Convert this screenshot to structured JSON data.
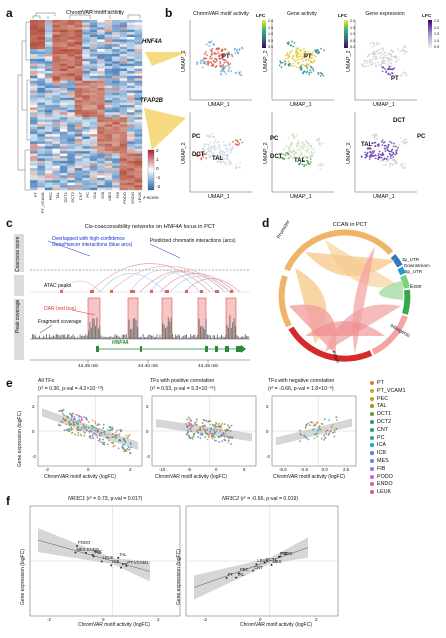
{
  "panel_labels": {
    "a": "a",
    "b": "b",
    "c": "c",
    "d": "d",
    "e": "e",
    "f": "f"
  },
  "panel_a": {
    "title": "ChromVAR motif activity",
    "motif1": "HNF4A",
    "motif2": "TFAP2B",
    "zscore_label": "z-score",
    "zscore_ticks": [
      "2",
      "1",
      "0",
      "-1",
      "-2"
    ],
    "col_labels": [
      "PT",
      "PT_VCAM1",
      "PEC",
      "TAL",
      "DCT1",
      "DCT2",
      "CNT",
      "PC",
      "ICA",
      "ICB",
      "MES",
      "FIB",
      "PODO",
      "ENDO",
      "LEUK"
    ]
  },
  "panel_b": {
    "col_titles": [
      "ChromVAR motif activity",
      "Gene activity",
      "Gene expression"
    ],
    "umap_x": "UMAP_1",
    "umap_y": "UMAP_2",
    "lfc": "LFC",
    "lfc_ticks": [
      "2.0",
      "1.5",
      "1.0",
      "0.5",
      "0.0"
    ],
    "lfc3_ticks": [
      "2.5",
      "2.0",
      "1.5",
      "1.0",
      "0.5"
    ],
    "labels_top": [
      "PT",
      "PT",
      "PT"
    ],
    "labels_bottom": [
      "PC",
      "DCT",
      "TAL",
      "PC",
      "DCT",
      "TAL",
      "DCT",
      "TAL",
      "PC"
    ]
  },
  "panel_c": {
    "title_pre": "Cis-coaccessibility networks on ",
    "title_gene": "HNF4A",
    "title_post": " locus in PCT",
    "ann_overlap": "Overlapped with high-confidence",
    "ann_genehancer": "GeneHancer interactions (blue arcs)",
    "ann_predicted": "Predicted chromatin interactions (arcs)",
    "ann_atac": "ATAC peaks",
    "ann_dar": "DAR (red box)",
    "ann_fragment": "Fragment coverage",
    "ylab_coaccess": "Coaccess score",
    "ylab_peak": "Peak coverage",
    "gene": "HNF4A",
    "positions": [
      "44.35 mb",
      "44.40 mb",
      "44.45 mb"
    ]
  },
  "panel_d": {
    "title": "CCAN in PCT",
    "sectors": [
      "Promoter",
      "3p_UTR",
      "Downstream",
      "5p_UTR",
      "Exon",
      "Intergenic",
      "Intron"
    ]
  },
  "panel_e": {
    "titles": [
      "All TFs",
      "TFs with positive correlation",
      "TFs with negative correlation"
    ],
    "stats": [
      "(r² = 0.36, p-val = 4.2×10⁻¹³)",
      "(r² = 0.53, p-val = 5.3×10⁻²⁵)",
      "(r² = -0.66, p-val = 1.8×10⁻⁸)"
    ],
    "ylabel": "Gene expression (logFC)",
    "xlabel": "ChromVAR motif activity (logFC)",
    "xticks1": [
      "-2",
      "0",
      "2"
    ],
    "xticks2": [
      "-10",
      "-5",
      "0",
      "5"
    ],
    "xticks3": [
      "-5.0",
      "-2.5",
      "0.0",
      "2.5"
    ],
    "yticks": [
      "2",
      "0",
      "-2"
    ]
  },
  "legend": {
    "items": [
      {
        "label": "PT",
        "color": "#e07a28"
      },
      {
        "label": "PT_VCAM1",
        "color": "#d4a017"
      },
      {
        "label": "PEC",
        "color": "#b8a22a"
      },
      {
        "label": "TAL",
        "color": "#8f9a1c"
      },
      {
        "label": "DCT1",
        "color": "#5e9c2e"
      },
      {
        "label": "DCT2",
        "color": "#2e9e4a"
      },
      {
        "label": "CNT",
        "color": "#1fa37a"
      },
      {
        "label": "PC",
        "color": "#1aa5a0"
      },
      {
        "label": "ICA",
        "color": "#1a9fc4"
      },
      {
        "label": "ICB",
        "color": "#2f8fd8"
      },
      {
        "label": "MES",
        "color": "#6f7fe0"
      },
      {
        "label": "FIB",
        "color": "#9a6fe0"
      },
      {
        "label": "PODO",
        "color": "#c25fd0"
      },
      {
        "label": "ENDO",
        "color": "#db5aa8"
      },
      {
        "label": "LEUK",
        "color": "#e05a78"
      }
    ]
  },
  "panel_f": {
    "title1_gene": "NR3C1",
    "title1_stats": "(r² = 0.73, p-val = 0.017)",
    "title2_gene": "NR3C2",
    "title2_stats": "(r² = -0.66, p-val = 0.019)",
    "ylabel": "Gene expression (logFC)",
    "xlabel": "ChromVAR motif activity (logFC)",
    "xticks": [
      "-2",
      "0",
      "2"
    ],
    "points1": [
      "MES",
      "PODO",
      "ENDO",
      "PEC",
      "FIB",
      "LEUK",
      "ICB",
      "TAL",
      "PT",
      "PT-VCAM1"
    ],
    "points2": [
      "PT",
      "TAL",
      "PEC",
      "CNT",
      "LEUK",
      "DCT1",
      "MES",
      "FIB",
      "PODO"
    ]
  },
  "chart_data": [
    {
      "type": "scatter",
      "title": "All TFs",
      "xlabel": "ChromVAR motif activity (logFC)",
      "ylabel": "Gene expression (logFC)",
      "xlim": [
        -3,
        3
      ],
      "ylim": [
        -3,
        3
      ],
      "trend": {
        "slope": 0.35,
        "intercept": 0.0
      }
    },
    {
      "type": "scatter",
      "title": "TFs with positive correlation",
      "xlabel": "ChromVAR motif activity (logFC)",
      "ylabel": "Gene expression (logFC)",
      "xlim": [
        -10,
        6
      ],
      "ylim": [
        -3,
        3
      ],
      "trend": {
        "slope": 0.12,
        "intercept": 0.0
      }
    },
    {
      "type": "scatter",
      "title": "TFs with negative correlation",
      "xlabel": "ChromVAR motif activity (logFC)",
      "ylabel": "Gene expression (logFC)",
      "xlim": [
        -6,
        3
      ],
      "ylim": [
        -3,
        3
      ],
      "trend": {
        "slope": -0.2,
        "intercept": 0.0
      }
    }
  ]
}
